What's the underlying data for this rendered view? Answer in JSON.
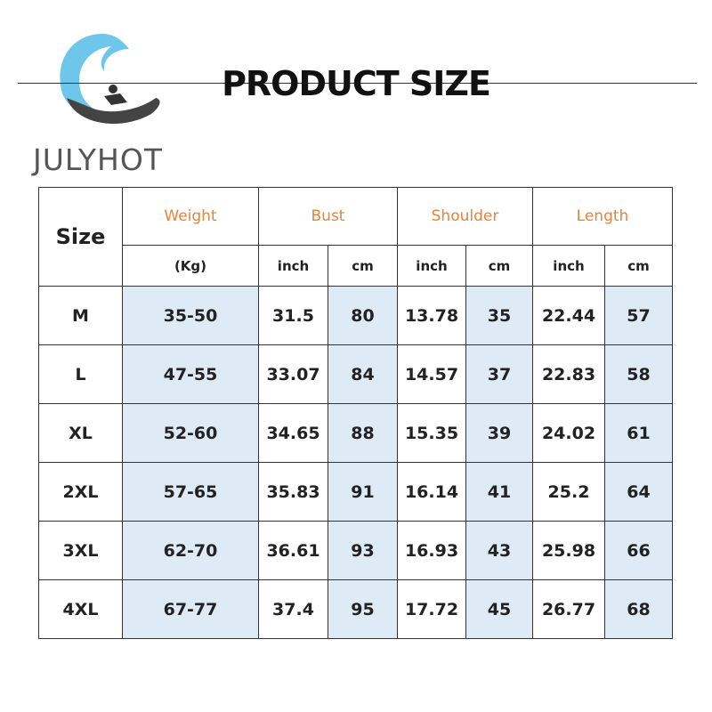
{
  "logo": {
    "brand": "JULYHOT"
  },
  "header": {
    "title": "PRODUCT SIZE"
  },
  "table": {
    "columns": [
      "Size",
      "Weight",
      "Bust",
      "Shoulder",
      "Length"
    ],
    "units": [
      "(Kg)",
      "inch",
      "cm",
      "inch",
      "cm",
      "inch",
      "cm"
    ],
    "rows": [
      [
        "M",
        "35-50",
        "31.5",
        "80",
        "13.78",
        "35",
        "22.44",
        "57"
      ],
      [
        "L",
        "47-55",
        "33.07",
        "84",
        "14.57",
        "37",
        "22.83",
        "58"
      ],
      [
        "XL",
        "52-60",
        "34.65",
        "88",
        "15.35",
        "39",
        "24.02",
        "61"
      ],
      [
        "2XL",
        "57-65",
        "35.83",
        "91",
        "16.14",
        "41",
        "25.2",
        "64"
      ],
      [
        "3XL",
        "62-70",
        "36.61",
        "93",
        "16.93",
        "43",
        "25.98",
        "66"
      ],
      [
        "4XL",
        "67-77",
        "37.4",
        "95",
        "17.72",
        "45",
        "26.77",
        "68"
      ]
    ]
  }
}
